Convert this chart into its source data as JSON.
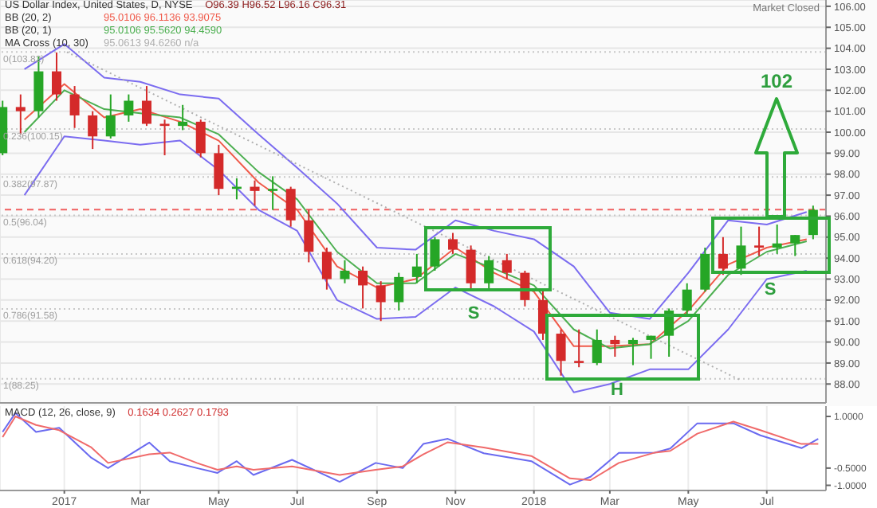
{
  "chart_data": [
    {
      "type": "candlestick",
      "title": "US Dollar Index, United States, D, NYSE",
      "subtitle": "O96.39 H96.52 L96.16 C96.31",
      "x": [
        "2016-11-14",
        "2016-11-28",
        "2016-12-12",
        "2016-12-26",
        "2017-01-09",
        "2017-01-23",
        "2017-02-06",
        "2017-02-20",
        "2017-03-06",
        "2017-03-20",
        "2017-04-03",
        "2017-04-17",
        "2017-05-01",
        "2017-05-15",
        "2017-05-29",
        "2017-06-12",
        "2017-06-26",
        "2017-07-10",
        "2017-07-24",
        "2017-08-07",
        "2017-08-21",
        "2017-09-04",
        "2017-09-18",
        "2017-10-02",
        "2017-10-16",
        "2017-10-30",
        "2017-11-13",
        "2017-11-27",
        "2017-12-11",
        "2017-12-25",
        "2018-01-08",
        "2018-01-22",
        "2018-02-05",
        "2018-02-19",
        "2018-03-05",
        "2018-03-19",
        "2018-04-02",
        "2018-04-16",
        "2018-04-30",
        "2018-05-14",
        "2018-05-28",
        "2018-06-11",
        "2018-06-25",
        "2018-07-09",
        "2018-07-23",
        "2018-08-06"
      ],
      "ohlc": [
        [
          99.0,
          101.5,
          98.9,
          101.2
        ],
        [
          101.2,
          101.8,
          99.9,
          101.0
        ],
        [
          101.0,
          103.6,
          100.7,
          102.9
        ],
        [
          102.9,
          103.8,
          101.5,
          101.8
        ],
        [
          101.8,
          102.2,
          100.2,
          100.8
        ],
        [
          100.8,
          101.0,
          99.2,
          99.8
        ],
        [
          99.8,
          101.8,
          99.7,
          100.8
        ],
        [
          100.8,
          101.8,
          100.5,
          101.5
        ],
        [
          101.5,
          102.2,
          100.3,
          100.4
        ],
        [
          100.4,
          100.6,
          98.9,
          100.3
        ],
        [
          100.3,
          101.3,
          100.1,
          100.5
        ],
        [
          100.5,
          100.6,
          98.8,
          99.0
        ],
        [
          99.0,
          99.4,
          97.0,
          97.3
        ],
        [
          97.3,
          97.8,
          96.8,
          97.4
        ],
        [
          97.4,
          97.7,
          96.5,
          97.2
        ],
        [
          97.2,
          97.9,
          96.3,
          97.3
        ],
        [
          97.3,
          97.4,
          95.5,
          95.8
        ],
        [
          95.8,
          96.3,
          93.8,
          94.3
        ],
        [
          94.3,
          94.5,
          92.5,
          93.0
        ],
        [
          93.0,
          93.9,
          92.8,
          93.4
        ],
        [
          93.4,
          93.6,
          91.6,
          92.7
        ],
        [
          92.7,
          92.9,
          91.0,
          91.9
        ],
        [
          91.9,
          93.3,
          91.5,
          93.1
        ],
        [
          93.1,
          94.2,
          92.8,
          93.6
        ],
        [
          93.6,
          95.0,
          93.4,
          94.9
        ],
        [
          94.9,
          95.2,
          94.2,
          94.4
        ],
        [
          94.4,
          94.6,
          92.5,
          92.8
        ],
        [
          92.8,
          94.1,
          92.5,
          93.9
        ],
        [
          93.9,
          94.2,
          93.0,
          93.3
        ],
        [
          93.3,
          93.4,
          91.7,
          92.0
        ],
        [
          92.0,
          92.5,
          90.1,
          90.4
        ],
        [
          90.4,
          90.6,
          88.4,
          89.1
        ],
        [
          89.1,
          90.6,
          88.8,
          89.0
        ],
        [
          89.0,
          90.6,
          88.9,
          90.1
        ],
        [
          90.1,
          90.3,
          89.3,
          89.9
        ],
        [
          89.9,
          90.2,
          88.9,
          90.1
        ],
        [
          90.1,
          90.3,
          89.2,
          90.3
        ],
        [
          90.3,
          91.6,
          89.3,
          91.5
        ],
        [
          91.5,
          92.8,
          91.3,
          92.5
        ],
        [
          92.5,
          94.5,
          92.4,
          94.2
        ],
        [
          94.2,
          95.0,
          93.2,
          93.5
        ],
        [
          93.5,
          95.5,
          93.2,
          94.6
        ],
        [
          94.6,
          95.5,
          94.1,
          94.5
        ],
        [
          94.5,
          95.6,
          94.2,
          94.7
        ],
        [
          94.7,
          95.1,
          94.1,
          95.1
        ],
        [
          95.1,
          96.5,
          94.9,
          96.3
        ]
      ],
      "colors": [
        "#26a626",
        "#d42a2a",
        "#26a626",
        "#d42a2a",
        "#d42a2a",
        "#d42a2a",
        "#26a626",
        "#26a626",
        "#d42a2a",
        "#d42a2a",
        "#26a626",
        "#d42a2a",
        "#d42a2a",
        "#26a626",
        "#d42a2a",
        "#26a626",
        "#d42a2a",
        "#d42a2a",
        "#d42a2a",
        "#26a626",
        "#d42a2a",
        "#d42a2a",
        "#26a626",
        "#26a626",
        "#26a626",
        "#d42a2a",
        "#d42a2a",
        "#26a626",
        "#d42a2a",
        "#d42a2a",
        "#d42a2a",
        "#d42a2a",
        "#d42a2a",
        "#26a626",
        "#d42a2a",
        "#26a626",
        "#26a626",
        "#26a626",
        "#26a626",
        "#26a626",
        "#d42a2a",
        "#26a626",
        "#d42a2a",
        "#26a626",
        "#26a626",
        "#26a626"
      ],
      "series": [
        {
          "type": "line",
          "color": "#7b6cf0",
          "x": [
            "2016-12-01",
            "2017-01-01",
            "2017-02-01",
            "2017-03-01",
            "2017-04-01",
            "2017-05-01",
            "2017-06-01",
            "2017-07-01",
            "2017-08-01",
            "2017-09-01",
            "2017-10-01",
            "2017-11-01",
            "2017-12-01",
            "2018-01-01",
            "2018-02-01",
            "2018-03-01",
            "2018-04-01",
            "2018-05-01",
            "2018-06-01",
            "2018-07-01",
            "2018-08-01"
          ],
          "values": [
            103.0,
            104.2,
            102.6,
            102.4,
            101.8,
            101.6,
            99.9,
            98.3,
            96.6,
            94.5,
            94.4,
            95.8,
            95.3,
            94.9,
            93.6,
            91.4,
            91.1,
            93.3,
            95.8,
            95.6,
            96.2
          ]
        },
        {
          "type": "line",
          "color": "#7b6cf0",
          "x": [
            "2016-12-01",
            "2017-01-01",
            "2017-02-01",
            "2017-03-01",
            "2017-04-01",
            "2017-05-01",
            "2017-06-01",
            "2017-07-01",
            "2017-08-01",
            "2017-09-01",
            "2017-10-01",
            "2017-11-01",
            "2017-12-01",
            "2018-01-01",
            "2018-02-01",
            "2018-03-01",
            "2018-04-01",
            "2018-05-01",
            "2018-06-01",
            "2018-07-01",
            "2018-08-01"
          ],
          "values": [
            97.0,
            99.8,
            99.6,
            99.4,
            99.6,
            98.2,
            96.3,
            95.3,
            92.0,
            91.1,
            91.2,
            92.6,
            91.7,
            90.5,
            87.6,
            88.0,
            88.7,
            88.7,
            90.6,
            93.0,
            93.4
          ]
        },
        {
          "type": "line",
          "color": "#f05a4a",
          "x": [
            "2016-12-01",
            "2017-01-01",
            "2017-02-01",
            "2017-03-01",
            "2017-04-01",
            "2017-05-01",
            "2017-06-01",
            "2017-07-01",
            "2017-08-01",
            "2017-09-01",
            "2017-10-01",
            "2017-11-01",
            "2017-12-01",
            "2018-01-01",
            "2018-02-01",
            "2018-03-01",
            "2018-04-01",
            "2018-05-01",
            "2018-06-01",
            "2018-07-01",
            "2018-08-01"
          ],
          "values": [
            100.6,
            102.3,
            100.7,
            101.1,
            100.5,
            99.6,
            97.6,
            96.3,
            93.6,
            92.6,
            93.0,
            94.5,
            93.3,
            92.4,
            89.8,
            89.8,
            89.9,
            91.5,
            93.7,
            94.5,
            94.9
          ]
        },
        {
          "type": "line",
          "color": "#4caf50",
          "x": [
            "2016-12-01",
            "2017-01-01",
            "2017-02-01",
            "2017-03-01",
            "2017-04-01",
            "2017-05-01",
            "2017-06-01",
            "2017-07-01",
            "2017-08-01",
            "2017-09-01",
            "2017-10-01",
            "2017-11-01",
            "2017-12-01",
            "2018-01-01",
            "2018-02-01",
            "2018-03-01",
            "2018-04-01",
            "2018-05-01",
            "2018-06-01",
            "2018-07-01",
            "2018-08-01"
          ],
          "values": [
            100.0,
            102.0,
            101.1,
            100.9,
            100.7,
            99.9,
            98.1,
            96.8,
            94.3,
            92.8,
            92.8,
            94.2,
            93.5,
            92.7,
            90.6,
            89.7,
            89.9,
            91.0,
            93.2,
            94.3,
            94.8
          ]
        },
        {
          "type": "line",
          "color": "#b0b0b0",
          "line_style": "dotted",
          "x": [
            "2017-01-03",
            "2018-06-10"
          ],
          "values": [
            103.82,
            88.2
          ]
        }
      ],
      "xlim": [
        "2016-11-12",
        "2018-08-16"
      ],
      "xticks": [
        {
          "value": "2017-01-01",
          "label": null
        },
        {
          "value": "2017-03-01",
          "label": null
        },
        {
          "value": "2017-05-01",
          "label": null
        },
        {
          "value": "2017-07-01",
          "label": null
        },
        {
          "value": "2017-09-01",
          "label": null
        },
        {
          "value": "2017-11-01",
          "label": null
        },
        {
          "value": "2018-01-01",
          "label": null
        },
        {
          "value": "2018-03-01",
          "label": null
        },
        {
          "value": "2018-05-01",
          "label": null
        },
        {
          "value": "2018-07-01",
          "label": null
        }
      ],
      "tick_labels": "y",
      "ylim": [
        87.1,
        106.3
      ],
      "yticks": [
        {
          "value": 88,
          "label": "88.00"
        },
        {
          "value": 89,
          "label": "89.00"
        },
        {
          "value": 90,
          "label": "90.00"
        },
        {
          "value": 91,
          "label": "91.00"
        },
        {
          "value": 92,
          "label": "92.00"
        },
        {
          "value": 93,
          "label": "93.00"
        },
        {
          "value": 94,
          "label": "94.00"
        },
        {
          "value": 95,
          "label": "95.00"
        },
        {
          "value": 96,
          "label": "96.00"
        },
        {
          "value": 97,
          "label": "97.00"
        },
        {
          "value": 98,
          "label": "98.00"
        },
        {
          "value": 99,
          "label": "99.00"
        },
        {
          "value": 100,
          "label": "100.00"
        },
        {
          "value": 101,
          "label": "101.00"
        },
        {
          "value": 102,
          "label": "102.00"
        },
        {
          "value": 103,
          "label": "103.00"
        },
        {
          "value": 104,
          "label": "104.00"
        },
        {
          "value": 105,
          "label": "105.00"
        },
        {
          "value": 106,
          "label": "106.00"
        }
      ],
      "grid": true,
      "ref_lines": [
        {
          "axis": "y",
          "value": 103.82,
          "label": "0(103.82)",
          "color": "#c8c8c8",
          "line_style": "dotted"
        },
        {
          "axis": "y",
          "value": 100.15,
          "label": "0.236(100.15)",
          "color": "#c8c8c8",
          "line_style": "dotted"
        },
        {
          "axis": "y",
          "value": 97.87,
          "label": "0.382(97.87)",
          "color": "#c8c8c8",
          "line_style": "dotted"
        },
        {
          "axis": "y",
          "value": 96.04,
          "label": "0.5(96.04)",
          "color": "#c8c8c8",
          "line_style": "dotted"
        },
        {
          "axis": "y",
          "value": 94.2,
          "label": "0.618(94.20)",
          "color": "#c8c8c8",
          "line_style": "dotted"
        },
        {
          "axis": "y",
          "value": 91.58,
          "label": "0.786(91.58)",
          "color": "#c8c8c8",
          "line_style": "dotted"
        },
        {
          "axis": "y",
          "value": 88.25,
          "label": "1(88.25)",
          "color": "#c8c8c8",
          "line_style": "dotted"
        },
        {
          "axis": "y",
          "value": 96.31,
          "color": "#f06060",
          "line_style": "dashed"
        }
      ],
      "annotations": [
        "BB (20, 2)",
        "95.0106 96.1136 93.9075",
        "BB (20, 1)",
        "95.0106 95.5620 94.4590",
        "MA Cross (10, 30)",
        "95.0613 94.6260 n/a",
        "Market Closed",
        "102",
        "S",
        "H",
        "S"
      ]
    },
    {
      "type": "line",
      "title": "MACD (12, 26, close, 9)",
      "subtitle": "0.1634 0.2627 0.1793",
      "x": [
        "2016-11-14",
        "2016-11-24",
        "2016-12-10",
        "2016-12-28",
        "2017-01-22",
        "2017-02-04",
        "2017-03-08",
        "2017-03-24",
        "2017-04-14",
        "2017-04-30",
        "2017-05-15",
        "2017-05-28",
        "2017-06-27",
        "2017-08-03",
        "2017-08-31",
        "2017-09-21",
        "2017-10-07",
        "2017-10-26",
        "2017-11-23",
        "2017-12-30",
        "2018-01-29",
        "2018-02-14",
        "2018-03-08",
        "2018-04-05",
        "2018-04-17",
        "2018-05-08",
        "2018-06-05",
        "2018-06-26",
        "2018-07-28",
        "2018-08-10"
      ],
      "series": [
        {
          "color": "#6a6af0",
          "values": [
            0.55,
            1.1,
            0.55,
            0.67,
            -0.2,
            -0.5,
            0.24,
            -0.3,
            -0.5,
            -0.64,
            -0.3,
            -0.7,
            -0.26,
            -0.9,
            -0.35,
            -0.5,
            0.2,
            0.35,
            -0.07,
            -0.3,
            -0.98,
            -0.75,
            -0.06,
            -0.05,
            0.07,
            0.8,
            0.8,
            0.45,
            0.08,
            0.35
          ]
        },
        {
          "color": "#f06a6a",
          "values": [
            0.4,
            1.0,
            0.75,
            0.6,
            0.1,
            -0.35,
            -0.1,
            -0.05,
            -0.35,
            -0.55,
            -0.45,
            -0.55,
            -0.45,
            -0.7,
            -0.55,
            -0.45,
            -0.1,
            0.25,
            0.1,
            -0.15,
            -0.8,
            -0.85,
            -0.35,
            -0.05,
            0.0,
            0.5,
            0.85,
            0.6,
            0.2,
            0.2
          ]
        }
      ],
      "xlim": [
        "2016-11-12",
        "2018-08-16"
      ],
      "xticks": [
        {
          "value": "2017-01-01",
          "label": "2017"
        },
        {
          "value": "2017-03-01",
          "label": "Mar"
        },
        {
          "value": "2017-05-01",
          "label": "May"
        },
        {
          "value": "2017-07-01",
          "label": "Jul"
        },
        {
          "value": "2017-09-01",
          "label": "Sep"
        },
        {
          "value": "2017-11-01",
          "label": "Nov"
        },
        {
          "value": "2018-01-01",
          "label": "2018"
        },
        {
          "value": "2018-03-01",
          "label": "Mar"
        },
        {
          "value": "2018-05-01",
          "label": "May"
        },
        {
          "value": "2018-07-01",
          "label": "Jul"
        }
      ],
      "ylim": [
        -1.15,
        1.3
      ],
      "yticks": [
        {
          "value": 1,
          "label": "1.0000"
        },
        {
          "value": -0.5,
          "label": "-0.5000"
        },
        {
          "value": -1,
          "label": "-1.0000"
        }
      ],
      "grid": "x"
    }
  ]
}
